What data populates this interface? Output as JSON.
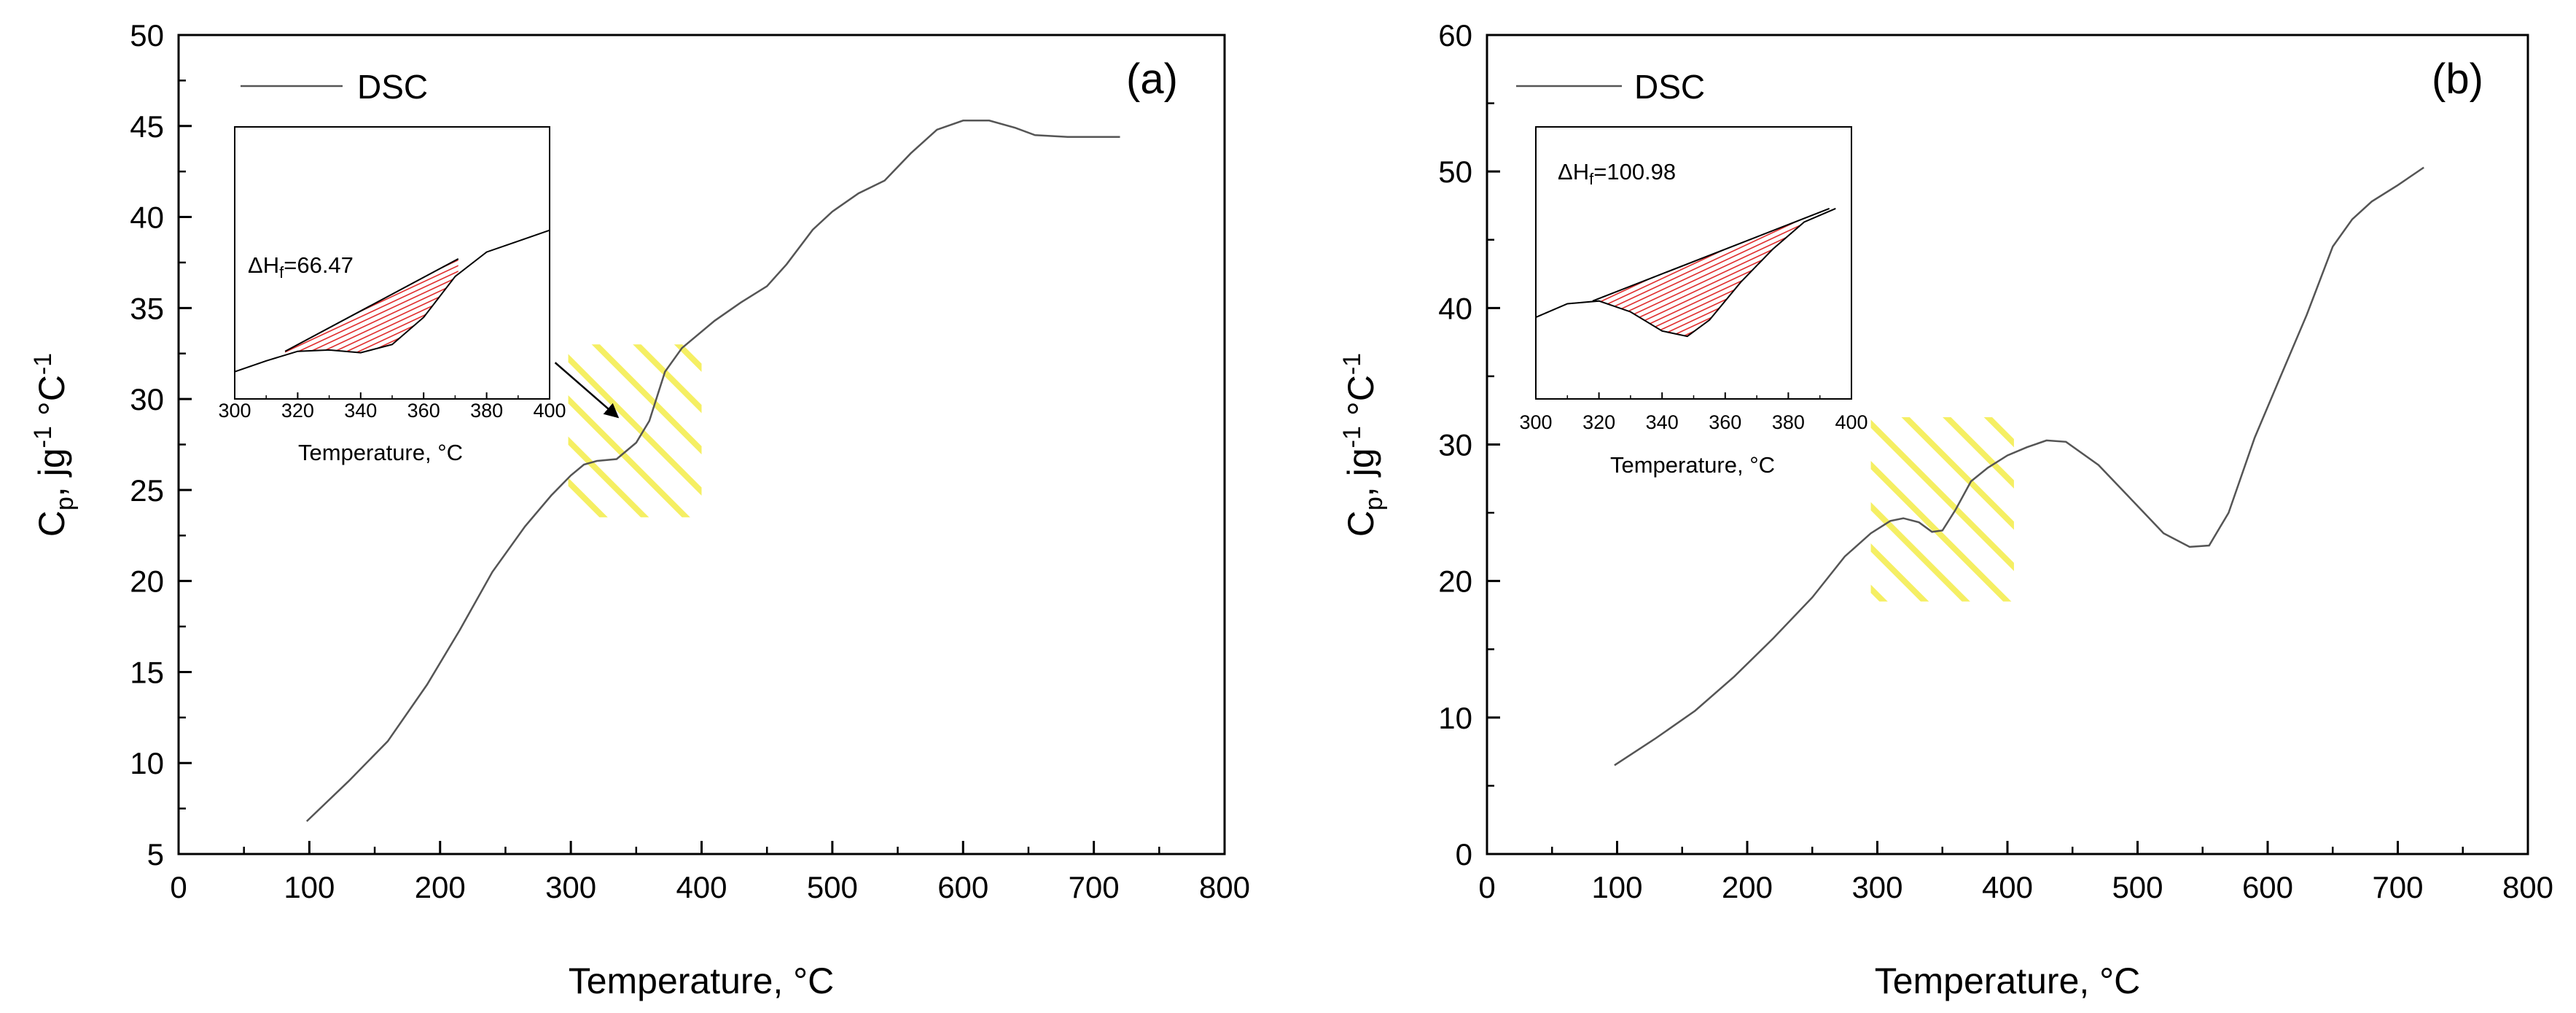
{
  "chart_data": [
    {
      "type": "line",
      "panel_label": "(a)",
      "xlabel": "Temperature, °C",
      "ylabel": {
        "base": "C",
        "sub": "p",
        "mid": ", jg",
        "sup1": "-1",
        "tail": " °C",
        "sup2": "-1"
      },
      "xlim": [
        0,
        800
      ],
      "ylim": [
        5,
        50
      ],
      "x_ticks": [
        "0",
        "100",
        "200",
        "300",
        "400",
        "500",
        "600",
        "700",
        "800"
      ],
      "y_ticks": [
        "5",
        "10",
        "15",
        "20",
        "25",
        "30",
        "35",
        "40",
        "45",
        "50"
      ],
      "grid": false,
      "legend": {
        "entries": [
          "DSC"
        ],
        "position": "top-left"
      },
      "series": [
        {
          "name": "DSC",
          "points": [
            [
              98,
              6.8
            ],
            [
              130,
              9.0
            ],
            [
              160,
              11.2
            ],
            [
              190,
              14.3
            ],
            [
              215,
              17.3
            ],
            [
              240,
              20.5
            ],
            [
              265,
              23.0
            ],
            [
              285,
              24.7
            ],
            [
              300,
              25.8
            ],
            [
              310,
              26.4
            ],
            [
              320,
              26.6
            ],
            [
              335,
              26.7
            ],
            [
              350,
              27.6
            ],
            [
              360,
              28.8
            ],
            [
              372,
              31.5
            ],
            [
              385,
              32.8
            ],
            [
              410,
              34.3
            ],
            [
              430,
              35.3
            ],
            [
              450,
              36.2
            ],
            [
              465,
              37.4
            ],
            [
              485,
              39.3
            ],
            [
              500,
              40.3
            ],
            [
              520,
              41.3
            ],
            [
              540,
              42.0
            ],
            [
              560,
              43.5
            ],
            [
              580,
              44.8
            ],
            [
              600,
              45.3
            ],
            [
              620,
              45.3
            ],
            [
              640,
              44.9
            ],
            [
              655,
              44.5
            ],
            [
              680,
              44.4
            ],
            [
              720,
              44.4
            ]
          ]
        }
      ],
      "highlight_region": {
        "x": [
          298,
          400
        ],
        "y": [
          23.5,
          33
        ]
      },
      "arrow": {
        "from": [
          288,
          32
        ],
        "to": [
          336,
          29
        ]
      },
      "inset": {
        "xlabel": "Temperature, °C",
        "xlim": [
          300,
          400
        ],
        "x_ticks": [
          "300",
          "320",
          "340",
          "360",
          "380",
          "400"
        ],
        "annotation": {
          "base": "ΔH",
          "sub": "f",
          "value": "=66.47"
        },
        "curve": [
          [
            300,
            0.1
          ],
          [
            310,
            0.14
          ],
          [
            320,
            0.175
          ],
          [
            330,
            0.18
          ],
          [
            340,
            0.17
          ],
          [
            350,
            0.2
          ],
          [
            360,
            0.3
          ],
          [
            370,
            0.45
          ],
          [
            380,
            0.54
          ],
          [
            390,
            0.58
          ],
          [
            400,
            0.62
          ]
        ],
        "baseline": [
          [
            316,
            0.175
          ],
          [
            371,
            0.515
          ]
        ]
      }
    },
    {
      "type": "line",
      "panel_label": "(b)",
      "xlabel": "Temperature, °C",
      "ylabel": {
        "base": "C",
        "sub": "p",
        "mid": ", jg",
        "sup1": "-1",
        "tail": " °C",
        "sup2": "-1"
      },
      "xlim": [
        0,
        800
      ],
      "ylim": [
        0,
        60
      ],
      "x_ticks": [
        "0",
        "100",
        "200",
        "300",
        "400",
        "500",
        "600",
        "700",
        "800"
      ],
      "y_ticks": [
        "0",
        "10",
        "20",
        "30",
        "40",
        "50",
        "60"
      ],
      "grid": false,
      "legend": {
        "entries": [
          "DSC"
        ],
        "position": "top-left"
      },
      "series": [
        {
          "name": "DSC",
          "points": [
            [
              98,
              6.5
            ],
            [
              130,
              8.5
            ],
            [
              160,
              10.5
            ],
            [
              190,
              13.0
            ],
            [
              220,
              15.8
            ],
            [
              250,
              18.8
            ],
            [
              275,
              21.8
            ],
            [
              295,
              23.5
            ],
            [
              310,
              24.4
            ],
            [
              320,
              24.6
            ],
            [
              332,
              24.3
            ],
            [
              342,
              23.6
            ],
            [
              350,
              23.7
            ],
            [
              360,
              25.2
            ],
            [
              372,
              27.3
            ],
            [
              385,
              28.3
            ],
            [
              400,
              29.2
            ],
            [
              415,
              29.8
            ],
            [
              430,
              30.3
            ],
            [
              445,
              30.2
            ],
            [
              470,
              28.5
            ],
            [
              500,
              25.5
            ],
            [
              520,
              23.5
            ],
            [
              540,
              22.5
            ],
            [
              555,
              22.6
            ],
            [
              570,
              25.0
            ],
            [
              590,
              30.5
            ],
            [
              610,
              35.0
            ],
            [
              630,
              39.5
            ],
            [
              650,
              44.5
            ],
            [
              665,
              46.5
            ],
            [
              680,
              47.8
            ],
            [
              700,
              49.0
            ],
            [
              720,
              50.3
            ]
          ]
        }
      ],
      "highlight_region": {
        "x": [
          295,
          405
        ],
        "y": [
          18.5,
          32
        ]
      },
      "inset": {
        "xlabel": "Temperature, °C",
        "xlim": [
          300,
          400
        ],
        "x_ticks": [
          "300",
          "320",
          "340",
          "360",
          "380",
          "400"
        ],
        "annotation": {
          "base": "ΔH",
          "sub": "f",
          "value": "=100.98"
        },
        "curve": [
          [
            300,
            0.3
          ],
          [
            310,
            0.35
          ],
          [
            320,
            0.36
          ],
          [
            330,
            0.32
          ],
          [
            340,
            0.25
          ],
          [
            348,
            0.23
          ],
          [
            355,
            0.29
          ],
          [
            365,
            0.43
          ],
          [
            375,
            0.55
          ],
          [
            385,
            0.65
          ],
          [
            395,
            0.7
          ]
        ],
        "baseline": [
          [
            318,
            0.36
          ],
          [
            393,
            0.7
          ]
        ]
      }
    }
  ]
}
